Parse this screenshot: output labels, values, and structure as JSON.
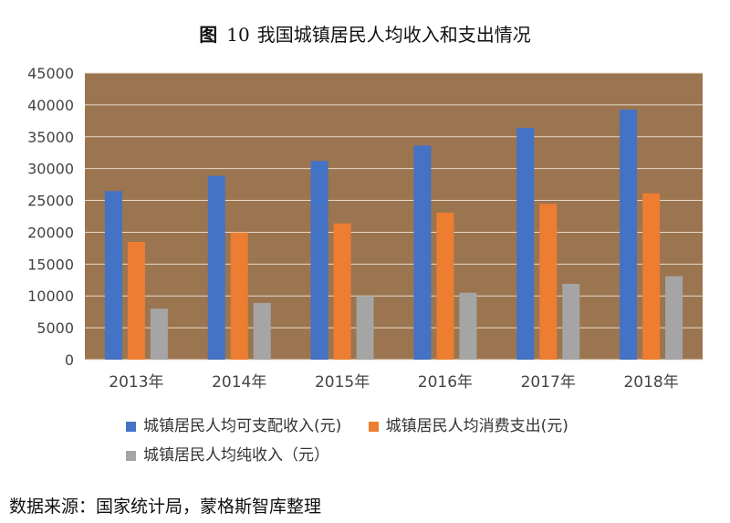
{
  "figure": {
    "label": "图",
    "number": "10",
    "title": "我国城镇居民人均收入和支出情况"
  },
  "source_note": "数据来源：国家统计局，蒙格斯智库整理",
  "colors": {
    "plot_background": "#9b7550",
    "grid": "#e8dccc",
    "series": [
      "#4472c4",
      "#ed7d31",
      "#a5a5a5"
    ]
  },
  "chart_data": {
    "type": "bar",
    "categories": [
      "2013年",
      "2014年",
      "2015年",
      "2016年",
      "2017年",
      "2018年"
    ],
    "series": [
      {
        "name": "城镇居民人均可支配收入(元)",
        "values": [
          26467,
          28844,
          31195,
          33616,
          36396,
          39251
        ]
      },
      {
        "name": "城镇居民人均消费支出(元)",
        "values": [
          18488,
          19968,
          21392,
          23079,
          24445,
          26112
        ]
      },
      {
        "name": "城镇居民人均纯收入（元）",
        "values": [
          8000,
          8900,
          10000,
          10500,
          11900,
          13100
        ]
      }
    ],
    "ylim": [
      0,
      45000
    ],
    "yticks": [
      0,
      5000,
      10000,
      15000,
      20000,
      25000,
      30000,
      35000,
      40000,
      45000
    ],
    "grid": true,
    "legend_position": "bottom"
  }
}
